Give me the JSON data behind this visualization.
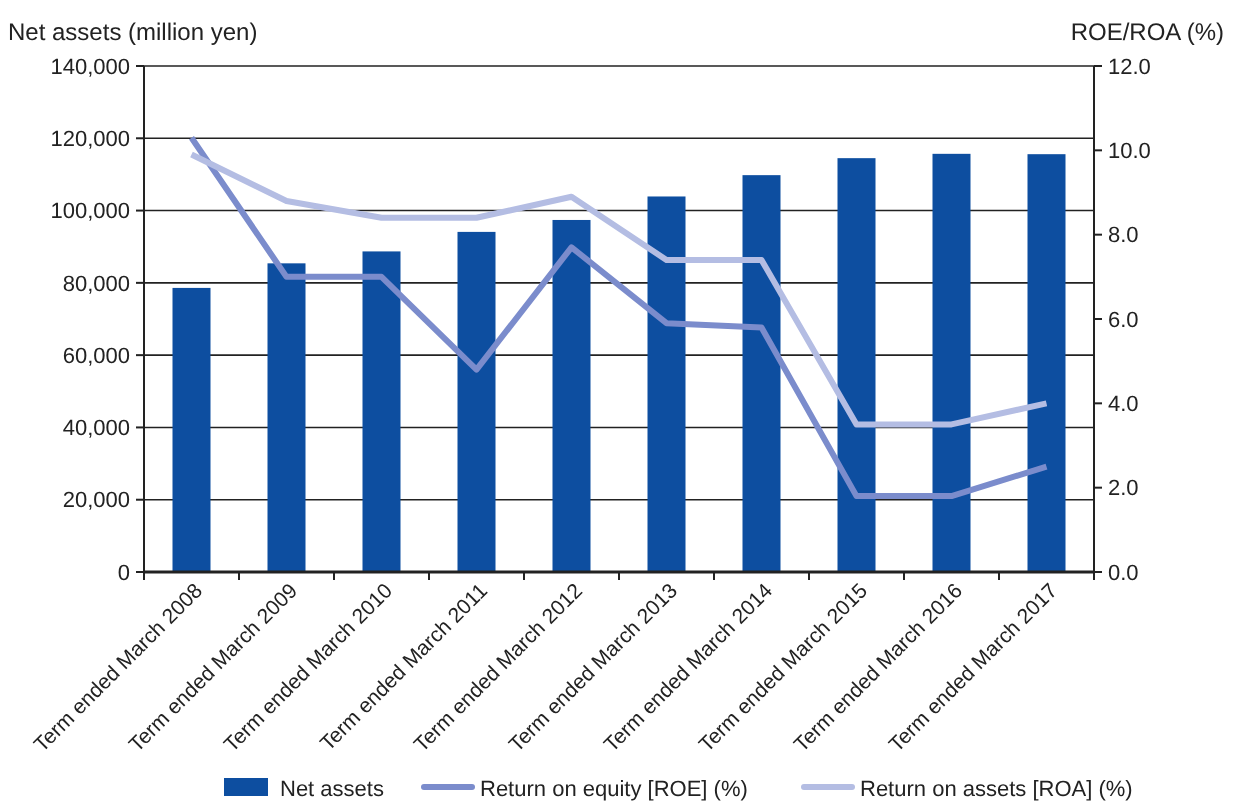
{
  "chart_data": {
    "type": "bar",
    "ylabel": "Net assets (million yen)",
    "y2label": "ROE/ROA (%)",
    "categories": [
      "Term ended March 2008",
      "Term ended March 2009",
      "Term ended March 2010",
      "Term ended March 2011",
      "Term ended March 2012",
      "Term ended March 2013",
      "Term ended March 2014",
      "Term ended March 2015",
      "Term ended March 2016",
      "Term ended March 2017"
    ],
    "series": [
      {
        "name": "Net assets",
        "color": "#0d4ea0",
        "values": [
          78600,
          85400,
          88700,
          94100,
          97400,
          103900,
          109800,
          114500,
          115700,
          115600
        ]
      },
      {
        "name": "Return on equity [ROE] (%)",
        "type": "line",
        "axis": "y2",
        "color": "#7b8ccc",
        "values": [
          10.3,
          7.0,
          7.0,
          4.8,
          7.7,
          5.9,
          5.8,
          1.8,
          1.8,
          2.5
        ]
      },
      {
        "name": "Return on assets [ROA] (%)",
        "type": "line",
        "axis": "y2",
        "color": "#b4bde3",
        "values": [
          9.9,
          8.8,
          8.4,
          8.4,
          8.9,
          7.4,
          7.4,
          3.5,
          3.5,
          4.0
        ]
      }
    ],
    "ylim": [
      0,
      140000
    ],
    "yticks": [
      {
        "value": 0,
        "label": "0"
      },
      {
        "value": 20000,
        "label": "20,000"
      },
      {
        "value": 40000,
        "label": "40,000"
      },
      {
        "value": 60000,
        "label": "60,000"
      },
      {
        "value": 80000,
        "label": "80,000"
      },
      {
        "value": 100000,
        "label": "100,000"
      },
      {
        "value": 120000,
        "label": "120,000"
      },
      {
        "value": 140000,
        "label": "140,000"
      }
    ],
    "y2lim": [
      0,
      12
    ],
    "y2ticks": [
      {
        "value": 0,
        "label": "0.0"
      },
      {
        "value": 2,
        "label": "2.0"
      },
      {
        "value": 4,
        "label": "4.0"
      },
      {
        "value": 6,
        "label": "6.0"
      },
      {
        "value": 8,
        "label": "8.0"
      },
      {
        "value": 10,
        "label": "10.0"
      },
      {
        "value": 12,
        "label": "12.0"
      }
    ],
    "grid": "y",
    "legend": "bottom",
    "marker": "none",
    "line_style": "solid"
  }
}
